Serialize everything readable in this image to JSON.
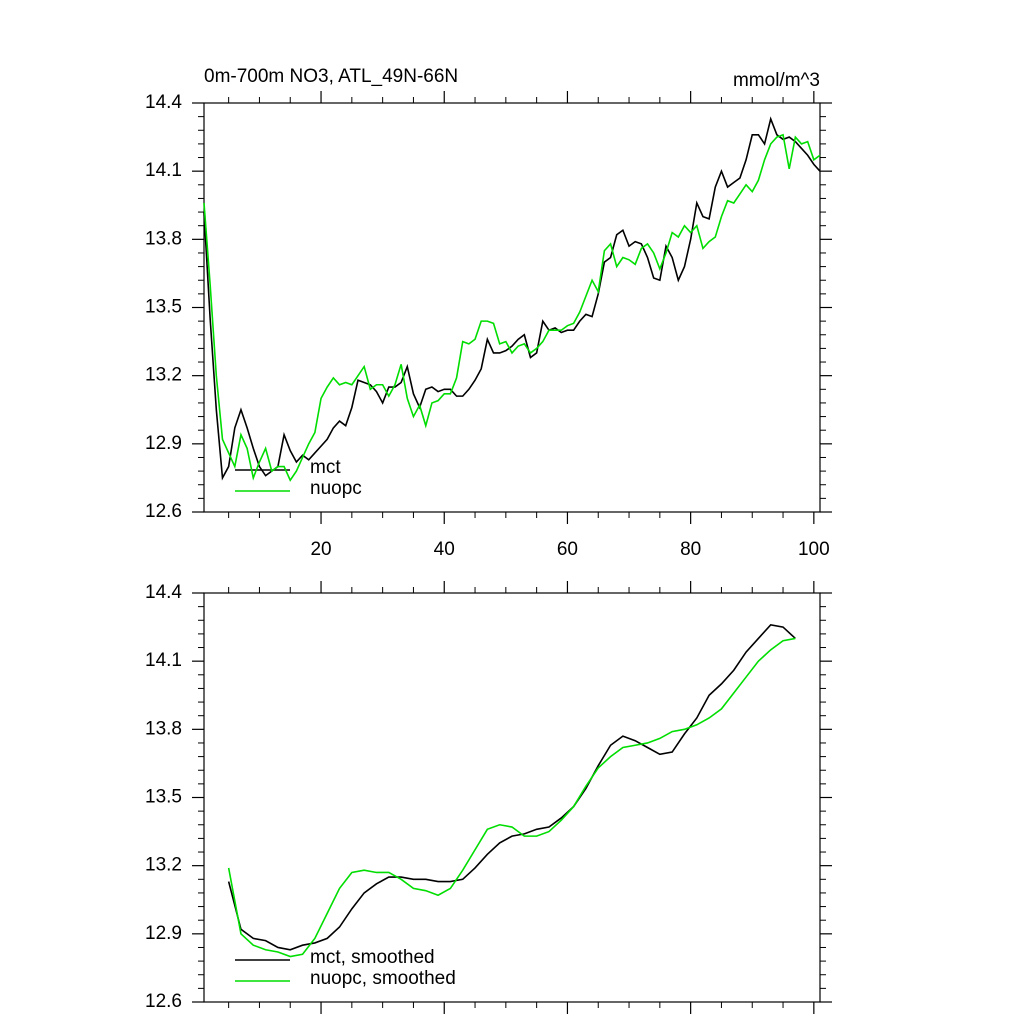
{
  "chart_data": [
    {
      "type": "line",
      "title": "0m-700m NO3, ATL_49N-66N",
      "units_label": "mmol/m^3",
      "x": [
        1,
        2,
        3,
        4,
        5,
        6,
        7,
        8,
        9,
        10,
        11,
        12,
        13,
        14,
        15,
        16,
        17,
        18,
        19,
        20,
        21,
        22,
        23,
        24,
        25,
        26,
        27,
        28,
        29,
        30,
        31,
        32,
        33,
        34,
        35,
        36,
        37,
        38,
        39,
        40,
        41,
        42,
        43,
        44,
        45,
        46,
        47,
        48,
        49,
        50,
        51,
        52,
        53,
        54,
        55,
        56,
        57,
        58,
        59,
        60,
        61,
        62,
        63,
        64,
        65,
        66,
        67,
        68,
        69,
        70,
        71,
        72,
        73,
        74,
        75,
        76,
        77,
        78,
        79,
        80,
        81,
        82,
        83,
        84,
        85,
        86,
        87,
        88,
        89,
        90,
        91,
        92,
        93,
        94,
        95,
        96,
        97,
        98,
        99,
        100,
        101
      ],
      "series": [
        {
          "name": "mct",
          "color": "#000000",
          "values": [
            13.92,
            13.45,
            13.05,
            12.75,
            12.8,
            12.97,
            13.05,
            12.97,
            12.88,
            12.8,
            12.76,
            12.78,
            12.8,
            12.94,
            12.87,
            12.82,
            12.85,
            12.83,
            12.86,
            12.89,
            12.92,
            12.97,
            13.0,
            12.98,
            13.06,
            13.18,
            13.17,
            13.16,
            13.13,
            13.08,
            13.15,
            13.15,
            13.17,
            13.24,
            13.12,
            13.06,
            13.14,
            13.15,
            13.13,
            13.14,
            13.14,
            13.11,
            13.11,
            13.14,
            13.18,
            13.23,
            13.36,
            13.3,
            13.3,
            13.31,
            13.33,
            13.36,
            13.38,
            13.28,
            13.3,
            13.44,
            13.4,
            13.41,
            13.39,
            13.4,
            13.4,
            13.44,
            13.47,
            13.46,
            13.56,
            13.7,
            13.72,
            13.82,
            13.84,
            13.77,
            13.79,
            13.78,
            13.72,
            13.63,
            13.62,
            13.77,
            13.72,
            13.62,
            13.68,
            13.8,
            13.96,
            13.9,
            13.89,
            14.03,
            14.1,
            14.03,
            14.05,
            14.07,
            14.15,
            14.26,
            14.26,
            14.22,
            14.33,
            14.26,
            14.24,
            14.25,
            14.23,
            14.2,
            14.17,
            14.13,
            14.1
          ]
        },
        {
          "name": "nuopc",
          "color": "#00dd00",
          "values": [
            13.96,
            13.6,
            13.2,
            12.92,
            12.86,
            12.8,
            12.94,
            12.88,
            12.75,
            12.82,
            12.88,
            12.78,
            12.8,
            12.8,
            12.74,
            12.78,
            12.84,
            12.9,
            12.95,
            13.1,
            13.15,
            13.19,
            13.16,
            13.17,
            13.16,
            13.2,
            13.24,
            13.14,
            13.16,
            13.16,
            13.11,
            13.16,
            13.25,
            13.1,
            13.02,
            13.07,
            12.98,
            13.08,
            13.09,
            13.12,
            13.12,
            13.19,
            13.35,
            13.34,
            13.36,
            13.44,
            13.44,
            13.43,
            13.34,
            13.35,
            13.3,
            13.33,
            13.34,
            13.3,
            13.32,
            13.35,
            13.4,
            13.4,
            13.4,
            13.42,
            13.43,
            13.48,
            13.55,
            13.62,
            13.57,
            13.75,
            13.78,
            13.68,
            13.72,
            13.71,
            13.69,
            13.76,
            13.78,
            13.74,
            13.67,
            13.74,
            13.83,
            13.81,
            13.86,
            13.83,
            13.86,
            13.76,
            13.79,
            13.81,
            13.9,
            13.97,
            13.96,
            14.0,
            14.04,
            14.01,
            14.06,
            14.15,
            14.22,
            14.25,
            14.26,
            14.11,
            14.25,
            14.22,
            14.23,
            14.15,
            14.17
          ]
        }
      ],
      "xlim": [
        1,
        101
      ],
      "xticks": [
        20,
        40,
        60,
        80,
        100
      ],
      "ylim": [
        12.6,
        14.4
      ],
      "yticks": [
        12.6,
        12.9,
        13.2,
        13.5,
        13.8,
        14.1,
        14.4
      ],
      "legend": "lower-left"
    },
    {
      "type": "line",
      "x": [
        5,
        7,
        9,
        11,
        13,
        15,
        17,
        19,
        21,
        23,
        25,
        27,
        29,
        31,
        33,
        35,
        37,
        39,
        41,
        43,
        45,
        47,
        49,
        51,
        53,
        55,
        57,
        59,
        61,
        63,
        65,
        67,
        69,
        71,
        73,
        75,
        77,
        79,
        81,
        83,
        85,
        87,
        89,
        91,
        93,
        95,
        97
      ],
      "series": [
        {
          "name": "mct, smoothed",
          "color": "#000000",
          "values": [
            13.13,
            12.92,
            12.88,
            12.87,
            12.84,
            12.83,
            12.85,
            12.86,
            12.88,
            12.93,
            13.01,
            13.08,
            13.12,
            13.15,
            13.15,
            13.14,
            13.14,
            13.13,
            13.13,
            13.14,
            13.19,
            13.25,
            13.3,
            13.33,
            13.34,
            13.36,
            13.37,
            13.41,
            13.46,
            13.54,
            13.64,
            13.73,
            13.77,
            13.75,
            13.72,
            13.69,
            13.7,
            13.78,
            13.85,
            13.95,
            14.0,
            14.06,
            14.14,
            14.2,
            14.26,
            14.25,
            14.2
          ]
        },
        {
          "name": "nuopc, smoothed",
          "color": "#00dd00",
          "values": [
            13.19,
            12.9,
            12.85,
            12.83,
            12.82,
            12.8,
            12.81,
            12.88,
            12.99,
            13.1,
            13.17,
            13.18,
            13.17,
            13.17,
            13.14,
            13.1,
            13.09,
            13.07,
            13.1,
            13.18,
            13.27,
            13.36,
            13.38,
            13.37,
            13.33,
            13.33,
            13.35,
            13.4,
            13.46,
            13.55,
            13.63,
            13.68,
            13.72,
            13.73,
            13.74,
            13.76,
            13.79,
            13.8,
            13.82,
            13.85,
            13.89,
            13.96,
            14.03,
            14.1,
            14.15,
            14.19,
            14.2
          ]
        }
      ],
      "xlim": [
        1,
        101
      ],
      "xticks": [
        20,
        40,
        60,
        80,
        100
      ],
      "ylim": [
        12.6,
        14.4
      ],
      "yticks": [
        12.6,
        12.9,
        13.2,
        13.5,
        13.8,
        14.1,
        14.4
      ],
      "legend": "lower-left"
    }
  ]
}
